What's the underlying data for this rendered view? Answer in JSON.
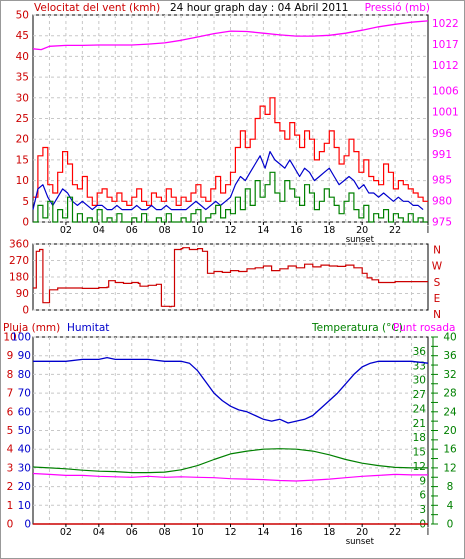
{
  "chart_data": [
    {
      "type": "line",
      "title": "24 hour graph day : 04 Abril 2011",
      "left_axis_label": "Velocitat del vent (kmh)",
      "right_axis_label": "Pressió (mb)",
      "left_ticks": [
        "0",
        "5",
        "10",
        "15",
        "20",
        "25",
        "30",
        "35",
        "40",
        "45",
        "50"
      ],
      "left_range": [
        0,
        50
      ],
      "right_ticks": [
        "975",
        "980",
        "985",
        "991",
        "996",
        "1001",
        "1006",
        "1012",
        "1017",
        "1022"
      ],
      "right_range": [
        975,
        1024
      ],
      "x_ticks": [
        "02",
        "04",
        "06",
        "08",
        "10",
        "12",
        "14",
        "16",
        "18",
        "sunset",
        "20",
        "22",
        "l"
      ],
      "x_range": [
        0,
        24
      ],
      "grid": true,
      "series": [
        {
          "name": "Pressió (mb)",
          "color": "#ff00ff",
          "axis": "right",
          "x": [
            0,
            0.5,
            1,
            2,
            3,
            4,
            5,
            6,
            7,
            8,
            9,
            10,
            11,
            12,
            13,
            14,
            15,
            16,
            17,
            18,
            19,
            20,
            21,
            22,
            23,
            24
          ],
          "y": [
            1016.0,
            1015.8,
            1016.6,
            1016.8,
            1016.8,
            1016.9,
            1016.9,
            1016.9,
            1017.1,
            1017.4,
            1018.0,
            1018.8,
            1019.6,
            1020.2,
            1020.1,
            1019.7,
            1019.3,
            1019.0,
            1019.0,
            1019.2,
            1019.7,
            1020.4,
            1021.2,
            1021.8,
            1022.3,
            1022.6
          ]
        },
        {
          "name": "Ratxa màxima",
          "color": "#ff0000",
          "axis": "left",
          "x": [
            0,
            0.3,
            0.6,
            0.9,
            1.2,
            1.5,
            1.8,
            2.1,
            2.4,
            2.7,
            3,
            3.3,
            3.6,
            3.9,
            4.2,
            4.5,
            4.8,
            5.1,
            5.4,
            5.7,
            6,
            6.3,
            6.6,
            6.9,
            7.2,
            7.5,
            7.8,
            8.1,
            8.4,
            8.7,
            9,
            9.3,
            9.6,
            9.9,
            10.2,
            10.5,
            10.8,
            11.1,
            11.4,
            11.7,
            12,
            12.3,
            12.6,
            12.9,
            13.2,
            13.5,
            13.8,
            14.1,
            14.4,
            14.7,
            15,
            15.3,
            15.6,
            15.9,
            16.2,
            16.5,
            16.8,
            17.1,
            17.4,
            17.7,
            18,
            18.3,
            18.6,
            18.9,
            19.2,
            19.5,
            19.8,
            20.1,
            20.4,
            20.7,
            21,
            21.3,
            21.6,
            21.9,
            22.2,
            22.5,
            22.8,
            23.1,
            23.4,
            23.7
          ],
          "y": [
            6,
            16,
            18,
            9,
            7,
            12,
            17,
            14,
            9,
            8,
            11,
            6,
            4,
            7,
            8,
            6,
            5,
            7,
            5,
            4,
            6,
            8,
            5,
            4,
            7,
            6,
            5,
            8,
            6,
            4,
            6,
            5,
            7,
            9,
            6,
            5,
            8,
            11,
            7,
            9,
            12,
            18,
            22,
            18,
            20,
            25,
            28,
            26,
            30,
            24,
            22,
            20,
            24,
            21,
            18,
            22,
            20,
            15,
            17,
            19,
            22,
            18,
            14,
            16,
            20,
            17,
            12,
            15,
            11,
            10,
            9,
            14,
            12,
            8,
            10,
            9,
            8,
            7,
            6,
            5
          ]
        },
        {
          "name": "Vent mitjà",
          "color": "#0000cc",
          "axis": "left",
          "x": [
            0,
            0.3,
            0.6,
            0.9,
            1.2,
            1.5,
            1.8,
            2.1,
            2.4,
            2.7,
            3,
            3.3,
            3.6,
            3.9,
            4.2,
            4.5,
            4.8,
            5.1,
            5.4,
            5.7,
            6,
            6.3,
            6.6,
            6.9,
            7.2,
            7.5,
            7.8,
            8.1,
            8.4,
            8.7,
            9,
            9.3,
            9.6,
            9.9,
            10.2,
            10.5,
            10.8,
            11.1,
            11.4,
            11.7,
            12,
            12.3,
            12.6,
            12.9,
            13.2,
            13.5,
            13.8,
            14.1,
            14.4,
            14.7,
            15,
            15.3,
            15.6,
            15.9,
            16.2,
            16.5,
            16.8,
            17.1,
            17.4,
            17.7,
            18,
            18.3,
            18.6,
            18.9,
            19.2,
            19.5,
            19.8,
            20.1,
            20.4,
            20.7,
            21,
            21.3,
            21.6,
            21.9,
            22.2,
            22.5,
            22.8,
            23.1,
            23.4,
            23.7
          ],
          "y": [
            3,
            8,
            9,
            6,
            4,
            6,
            8,
            7,
            5,
            4,
            5,
            4,
            3,
            4,
            4,
            3,
            3,
            4,
            3,
            3,
            3,
            4,
            3,
            3,
            4,
            3,
            3,
            4,
            3,
            3,
            3,
            3,
            4,
            5,
            4,
            3,
            4,
            5,
            4,
            5,
            6,
            9,
            11,
            10,
            12,
            14,
            16,
            13,
            17,
            15,
            14,
            13,
            15,
            13,
            11,
            13,
            12,
            10,
            11,
            12,
            13,
            11,
            9,
            10,
            11,
            10,
            8,
            9,
            7,
            7,
            6,
            7,
            6,
            5,
            6,
            5,
            5,
            4,
            4,
            3
          ]
        },
        {
          "name": "Vent mínim",
          "color": "#008000",
          "axis": "left",
          "x": [
            0,
            0.3,
            0.6,
            0.9,
            1.2,
            1.5,
            1.8,
            2.1,
            2.4,
            2.7,
            3,
            3.3,
            3.6,
            3.9,
            4.2,
            4.5,
            4.8,
            5.1,
            5.4,
            5.7,
            6,
            6.3,
            6.6,
            6.9,
            7.2,
            7.5,
            7.8,
            8.1,
            8.4,
            8.7,
            9,
            9.3,
            9.6,
            9.9,
            10.2,
            10.5,
            10.8,
            11.1,
            11.4,
            11.7,
            12,
            12.3,
            12.6,
            12.9,
            13.2,
            13.5,
            13.8,
            14.1,
            14.4,
            14.7,
            15,
            15.3,
            15.6,
            15.9,
            16.2,
            16.5,
            16.8,
            17.1,
            17.4,
            17.7,
            18,
            18.3,
            18.6,
            18.9,
            19.2,
            19.5,
            19.8,
            20.1,
            20.4,
            20.7,
            21,
            21.3,
            21.6,
            21.9,
            22.2,
            22.5,
            22.8,
            23.1,
            23.4,
            23.7
          ],
          "y": [
            0,
            4,
            1,
            5,
            0,
            3,
            1,
            6,
            0,
            2,
            0,
            1,
            0,
            3,
            0,
            1,
            0,
            2,
            0,
            0,
            1,
            0,
            2,
            0,
            0,
            1,
            0,
            2,
            0,
            0,
            1,
            0,
            2,
            3,
            0,
            1,
            2,
            4,
            1,
            3,
            2,
            6,
            3,
            8,
            4,
            10,
            6,
            9,
            12,
            7,
            5,
            10,
            8,
            6,
            4,
            9,
            7,
            3,
            5,
            8,
            6,
            4,
            2,
            5,
            7,
            3,
            1,
            4,
            0,
            2,
            1,
            3,
            0,
            2,
            1,
            0,
            2,
            0,
            1,
            0
          ]
        }
      ]
    },
    {
      "type": "line",
      "title": "",
      "left_ticks": [
        "0",
        "90",
        "180",
        "270",
        "360"
      ],
      "left_range": [
        0,
        360
      ],
      "right_labels": [
        "N",
        "W",
        "S",
        "E",
        "N"
      ],
      "x_range": [
        0,
        24
      ],
      "grid": true,
      "series": [
        {
          "name": "Direcció del vent",
          "color": "#cc0000",
          "axis": "left",
          "x": [
            0,
            0.2,
            0.4,
            0.6,
            0.8,
            1.0,
            1.5,
            2,
            3,
            4,
            4.5,
            4.6,
            5.0,
            5.5,
            6,
            6.4,
            6.5,
            7,
            7.5,
            7.8,
            8.3,
            8.4,
            8.6,
            9.0,
            9.1,
            9.5,
            10,
            10.3,
            10.6,
            11,
            11.5,
            12,
            12.5,
            13,
            13.5,
            14,
            14.5,
            15,
            15.5,
            16,
            16.5,
            17,
            17.5,
            18,
            18.5,
            19,
            19.5,
            20,
            20.3,
            20.6,
            21,
            21.5,
            22,
            22.5,
            23,
            23.5,
            24
          ],
          "y": [
            120,
            320,
            330,
            40,
            40,
            110,
            120,
            120,
            118,
            122,
            125,
            160,
            150,
            145,
            150,
            145,
            130,
            135,
            140,
            20,
            18,
            20,
            330,
            335,
            340,
            330,
            335,
            320,
            200,
            210,
            205,
            215,
            210,
            225,
            230,
            240,
            215,
            225,
            240,
            230,
            250,
            235,
            245,
            240,
            238,
            245,
            230,
            200,
            175,
            165,
            150,
            150,
            155,
            155,
            155,
            155,
            155
          ]
        }
      ]
    },
    {
      "type": "line",
      "title": "",
      "labels_left": [
        "Pluja (mm)",
        "Humitat"
      ],
      "labels_right": [
        "Temperatura (°C)",
        "Punt rosada"
      ],
      "rain_ticks": [
        "0",
        "1",
        "2",
        "3",
        "4",
        "5",
        "6",
        "7",
        "8",
        "9",
        "10"
      ],
      "rain_range": [
        0,
        10
      ],
      "humidity_ticks": [
        "0",
        "10",
        "20",
        "30",
        "40",
        "50",
        "60",
        "70",
        "80",
        "90",
        "100"
      ],
      "humidity_range": [
        0,
        100
      ],
      "temp_ticks_left": [
        "0",
        "3",
        "6",
        "9",
        "12",
        "15",
        "18",
        "21",
        "24",
        "27",
        "30",
        "33",
        "36"
      ],
      "temp_ticks_right": [
        "0",
        "2",
        "4",
        "6",
        "8",
        "10",
        "12",
        "14",
        "16",
        "18",
        "20",
        "22",
        "24",
        "26",
        "28",
        "30",
        "32",
        "34",
        "36",
        "38",
        "40"
      ],
      "temp_range": [
        0,
        40
      ],
      "x_ticks": [
        "02",
        "04",
        "06",
        "08",
        "10",
        "12",
        "14",
        "16",
        "18",
        "sunset",
        "20",
        "22",
        "l"
      ],
      "x_range": [
        0,
        24
      ],
      "grid": true,
      "series": [
        {
          "name": "Humitat",
          "color": "#0000cc",
          "axis": "humidity",
          "x": [
            0,
            1,
            2,
            3,
            4,
            4.5,
            5,
            6,
            7,
            8,
            9,
            9.5,
            10,
            10.5,
            11,
            11.5,
            12,
            12.5,
            13,
            13.5,
            14,
            14.5,
            15,
            15.5,
            16,
            16.5,
            17,
            17.5,
            18,
            18.5,
            19,
            19.5,
            20,
            20.5,
            21,
            22,
            23,
            24
          ],
          "y": [
            87,
            87,
            87,
            88,
            88,
            89,
            88,
            88,
            88,
            87,
            87,
            86,
            82,
            76,
            70,
            66,
            63,
            61,
            60,
            58,
            56,
            55,
            56,
            54,
            55,
            56,
            58,
            62,
            66,
            70,
            75,
            80,
            84,
            86,
            87,
            87,
            87,
            86
          ]
        },
        {
          "name": "Temperatura (°C)",
          "color": "#008000",
          "axis": "temp",
          "x": [
            0,
            1,
            2,
            3,
            4,
            5,
            6,
            7,
            8,
            9,
            10,
            11,
            12,
            13,
            14,
            15,
            16,
            17,
            18,
            19,
            20,
            21,
            22,
            23,
            24
          ],
          "y": [
            12.2,
            12.0,
            11.8,
            11.5,
            11.3,
            11.2,
            11.0,
            11.0,
            11.1,
            11.6,
            12.5,
            13.8,
            15.0,
            15.6,
            16.0,
            16.1,
            16.0,
            15.6,
            14.8,
            13.8,
            13.0,
            12.5,
            12.1,
            12.0,
            12.0
          ]
        },
        {
          "name": "Punt rosada",
          "color": "#ff00ff",
          "axis": "temp",
          "x": [
            0,
            1,
            2,
            3,
            4,
            5,
            6,
            7,
            8,
            9,
            10,
            11,
            12,
            13,
            14,
            15,
            16,
            17,
            18,
            19,
            20,
            21,
            22,
            23,
            24
          ],
          "y": [
            10.8,
            10.6,
            10.4,
            10.4,
            10.2,
            10.1,
            10.0,
            10.2,
            10.0,
            10.1,
            10.0,
            9.9,
            9.7,
            9.6,
            9.5,
            9.3,
            9.2,
            9.4,
            9.6,
            9.9,
            10.2,
            10.4,
            10.6,
            10.5,
            10.5
          ]
        },
        {
          "name": "Pluja (mm)",
          "color": "#cc0000",
          "axis": "rain",
          "x": [
            0,
            24
          ],
          "y": [
            0,
            0
          ]
        }
      ]
    }
  ]
}
